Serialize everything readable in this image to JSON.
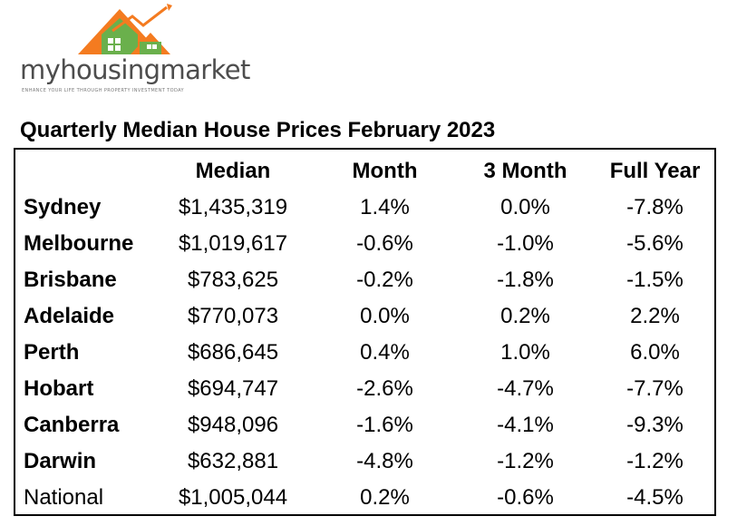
{
  "logo": {
    "wordmark": "myhousingmarket",
    "tagline": "ENHANCE YOUR LIFE THROUGH PROPERTY INVESTMENT TODAY",
    "colors": {
      "roof": "#f47b20",
      "house": "#6ab04c",
      "text": "#4d4d4d"
    }
  },
  "title": "Quarterly Median House Prices February 2023",
  "table": {
    "headers": [
      "",
      "Median",
      "Month",
      "3 Month",
      "Full Year"
    ],
    "rows": [
      {
        "city": "Sydney",
        "median": "$1,435,319",
        "month": "1.4%",
        "three_month": "0.0%",
        "full_year": "-7.8%"
      },
      {
        "city": "Melbourne",
        "median": "$1,019,617",
        "month": "-0.6%",
        "three_month": "-1.0%",
        "full_year": "-5.6%"
      },
      {
        "city": "Brisbane",
        "median": "$783,625",
        "month": "-0.2%",
        "three_month": "-1.8%",
        "full_year": "-1.5%"
      },
      {
        "city": "Adelaide",
        "median": "$770,073",
        "month": "0.0%",
        "three_month": "0.2%",
        "full_year": "2.2%"
      },
      {
        "city": "Perth",
        "median": "$686,645",
        "month": "0.4%",
        "three_month": "1.0%",
        "full_year": "6.0%"
      },
      {
        "city": "Hobart",
        "median": "$694,747",
        "month": "-2.6%",
        "three_month": "-4.7%",
        "full_year": "-7.7%"
      },
      {
        "city": "Canberra",
        "median": "$948,096",
        "month": "-1.6%",
        "three_month": "-4.1%",
        "full_year": "-9.3%"
      },
      {
        "city": "Darwin",
        "median": "$632,881",
        "month": "-4.8%",
        "three_month": "-1.2%",
        "full_year": "-1.2%"
      },
      {
        "city": "National",
        "median": "$1,005,044",
        "month": "0.2%",
        "three_month": "-0.6%",
        "full_year": "-4.5%"
      }
    ]
  }
}
